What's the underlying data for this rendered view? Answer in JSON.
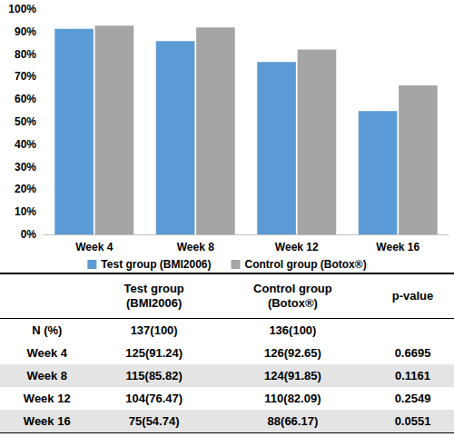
{
  "chart_data": {
    "type": "bar",
    "categories": [
      "Week 4",
      "Week 8",
      "Week 12",
      "Week 16"
    ],
    "series": [
      {
        "name": "Test group (BMI2006)",
        "color": "#5b9bd5",
        "values": [
          91.24,
          85.82,
          76.47,
          54.74
        ]
      },
      {
        "name": "Control group (Botox®)",
        "color": "#a5a5a5",
        "values": [
          92.65,
          91.85,
          82.09,
          66.17
        ]
      }
    ],
    "ylim": [
      0,
      100
    ],
    "yticks": [
      {
        "value": 0,
        "label": "0%"
      },
      {
        "value": 10,
        "label": "10%"
      },
      {
        "value": 20,
        "label": "20%"
      },
      {
        "value": 30,
        "label": "30%"
      },
      {
        "value": 40,
        "label": "40%"
      },
      {
        "value": 50,
        "label": "50%"
      },
      {
        "value": 60,
        "label": "60%"
      },
      {
        "value": 70,
        "label": "70%"
      },
      {
        "value": 80,
        "label": "80%"
      },
      {
        "value": 90,
        "label": "90%"
      },
      {
        "value": 100,
        "label": "100%"
      }
    ],
    "grid": false,
    "legend": "bottom"
  },
  "table": {
    "header": [
      null,
      "Test group\n(BMI2006)",
      "Control group\n(Botox®)",
      "p-value"
    ],
    "rows": [
      [
        "N (%)",
        "137(100)",
        "136(100)",
        null
      ],
      [
        "Week 4",
        "125(91.24)",
        "126(92.65)",
        "0.6695"
      ],
      [
        "Week 8",
        "115(85.82)",
        "124(91.85)",
        "0.1161"
      ],
      [
        "Week 12",
        "104(76.47)",
        "110(82.09)",
        "0.2549"
      ],
      [
        "Week 16",
        "75(54.74)",
        "88(66.17)",
        "0.0551"
      ]
    ]
  }
}
